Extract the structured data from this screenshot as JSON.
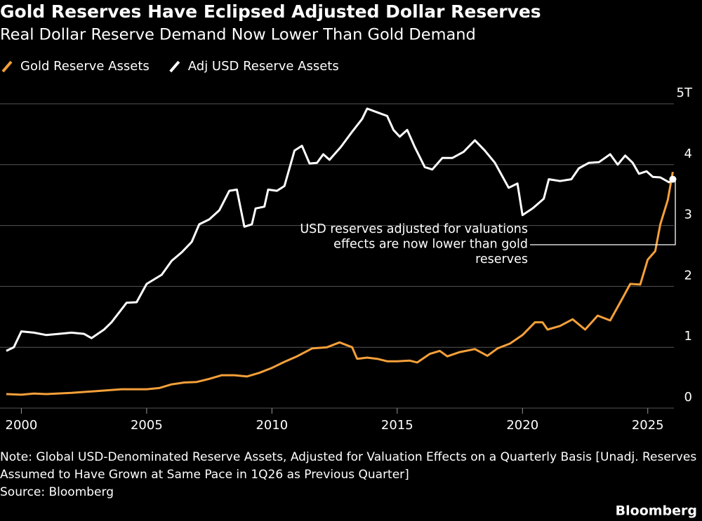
{
  "chart_data": {
    "type": "line",
    "title": "Gold Reserves Have Eclipsed Adjusted Dollar Reserves",
    "subtitle": "Real Dollar Reserve Demand Now Lower Than Gold Demand",
    "xlim": [
      1999.4,
      2026.1
    ],
    "xticks": [
      2000,
      2005,
      2010,
      2015,
      2020,
      2025
    ],
    "ylim": [
      0,
      5
    ],
    "yticks": [
      0,
      1,
      2,
      3,
      4,
      {
        "value": 5,
        "label": "5T"
      }
    ],
    "grid": true,
    "series": [
      {
        "name": "Gold Reserve Assets",
        "color": "#f5a03a",
        "x": [
          1999.4,
          2000.0,
          2000.5,
          2001.0,
          2002.0,
          2003.0,
          2004.0,
          2005.0,
          2005.5,
          2006.0,
          2006.5,
          2007.0,
          2007.5,
          2008.0,
          2008.5,
          2009.0,
          2009.5,
          2010.0,
          2010.5,
          2011.0,
          2011.6,
          2012.2,
          2012.7,
          2013.2,
          2013.4,
          2013.8,
          2014.2,
          2014.6,
          2015.0,
          2015.5,
          2015.8,
          2016.3,
          2016.7,
          2017.0,
          2017.5,
          2018.1,
          2018.6,
          2019.0,
          2019.5,
          2020.0,
          2020.5,
          2020.8,
          2021.0,
          2021.5,
          2022.0,
          2022.5,
          2023.0,
          2023.5,
          2024.0,
          2024.3,
          2024.7,
          2025.0,
          2025.3,
          2025.5,
          2025.8,
          2026.0
        ],
        "values": [
          0.23,
          0.22,
          0.24,
          0.23,
          0.25,
          0.28,
          0.31,
          0.31,
          0.33,
          0.39,
          0.42,
          0.43,
          0.48,
          0.54,
          0.54,
          0.52,
          0.58,
          0.66,
          0.76,
          0.85,
          0.98,
          1.0,
          1.08,
          1.0,
          0.81,
          0.83,
          0.81,
          0.77,
          0.77,
          0.78,
          0.75,
          0.89,
          0.94,
          0.85,
          0.92,
          0.97,
          0.86,
          0.98,
          1.06,
          1.2,
          1.41,
          1.41,
          1.29,
          1.35,
          1.46,
          1.29,
          1.52,
          1.44,
          1.81,
          2.04,
          2.03,
          2.44,
          2.58,
          3.02,
          3.42,
          3.88
        ]
      },
      {
        "name": "Adj USD Reserve Assets",
        "color": "#ffffff",
        "x": [
          1999.4,
          1999.7,
          2000.0,
          2000.5,
          2001.0,
          2001.5,
          2002.0,
          2002.5,
          2002.8,
          2003.3,
          2003.6,
          2004.2,
          2004.6,
          2005.0,
          2005.6,
          2006.0,
          2006.4,
          2006.8,
          2007.1,
          2007.5,
          2007.9,
          2008.3,
          2008.6,
          2008.9,
          2009.2,
          2009.35,
          2009.7,
          2009.85,
          2010.2,
          2010.5,
          2010.9,
          2011.2,
          2011.5,
          2011.8,
          2012.05,
          2012.3,
          2012.75,
          2013.2,
          2013.6,
          2013.8,
          2014.2,
          2014.6,
          2014.85,
          2015.1,
          2015.4,
          2015.7,
          2016.1,
          2016.4,
          2016.8,
          2017.2,
          2017.65,
          2018.1,
          2018.5,
          2018.9,
          2019.45,
          2019.8,
          2020.0,
          2020.4,
          2020.85,
          2021.05,
          2021.5,
          2021.95,
          2022.25,
          2022.65,
          2023.05,
          2023.5,
          2023.8,
          2024.1,
          2024.4,
          2024.65,
          2024.95,
          2025.2,
          2025.5,
          2025.85,
          2026.0
        ],
        "values": [
          0.94,
          1.0,
          1.26,
          1.24,
          1.2,
          1.22,
          1.24,
          1.22,
          1.15,
          1.29,
          1.41,
          1.73,
          1.74,
          2.04,
          2.19,
          2.42,
          2.56,
          2.73,
          3.02,
          3.1,
          3.25,
          3.57,
          3.59,
          2.98,
          3.02,
          3.28,
          3.31,
          3.59,
          3.57,
          3.65,
          4.23,
          4.31,
          4.02,
          4.03,
          4.17,
          4.08,
          4.29,
          4.54,
          4.75,
          4.92,
          4.86,
          4.8,
          4.57,
          4.46,
          4.57,
          4.29,
          3.96,
          3.92,
          4.11,
          4.11,
          4.21,
          4.4,
          4.23,
          4.03,
          3.62,
          3.69,
          3.17,
          3.28,
          3.44,
          3.76,
          3.73,
          3.76,
          3.94,
          4.03,
          4.04,
          4.17,
          4.0,
          4.15,
          4.03,
          3.85,
          3.89,
          3.8,
          3.79,
          3.71,
          3.76
        ]
      }
    ],
    "annotation": [
      "USD reserves adjusted for valuations",
      "effects are now lower than gold",
      "reserves"
    ],
    "note": "Note: Global USD-Denominated Reserve Assets, Adjusted for Valuation Effects on a Quarterly Basis [Unadj. Reserves Assumed to Have Grown at Same Pace in 1Q26 as Previous Quarter]",
    "source": "Source: Bloomberg",
    "logo": "Bloomberg"
  }
}
